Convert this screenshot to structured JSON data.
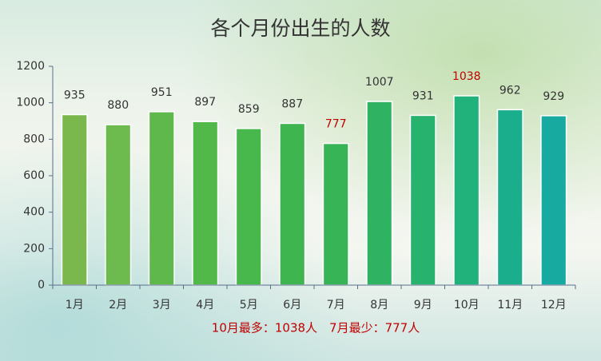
{
  "chart_data": {
    "type": "bar",
    "title": "各个月份出生的人数",
    "categories": [
      "1月",
      "2月",
      "3月",
      "4月",
      "5月",
      "6月",
      "7月",
      "8月",
      "9月",
      "10月",
      "11月",
      "12月"
    ],
    "values": [
      935,
      880,
      951,
      897,
      859,
      887,
      777,
      1007,
      931,
      1038,
      962,
      929
    ],
    "colors": [
      "#7ab84e",
      "#6dba4e",
      "#5fb84b",
      "#52b84a",
      "#48b74c",
      "#3fb550",
      "#37b456",
      "#2fb363",
      "#27b26e",
      "#21b17a",
      "#1bae8c",
      "#17aaa0"
    ],
    "label_colors": [
      "#333333",
      "#333333",
      "#333333",
      "#333333",
      "#333333",
      "#333333",
      "#c00000",
      "#333333",
      "#333333",
      "#c00000",
      "#333333",
      "#333333"
    ],
    "ylim": [
      0,
      1200
    ],
    "yticks": [
      0,
      200,
      400,
      600,
      800,
      1000,
      1200
    ],
    "annotation": "10月最多：1038人　7月最少：777人",
    "annotation_color": "#c00000"
  }
}
